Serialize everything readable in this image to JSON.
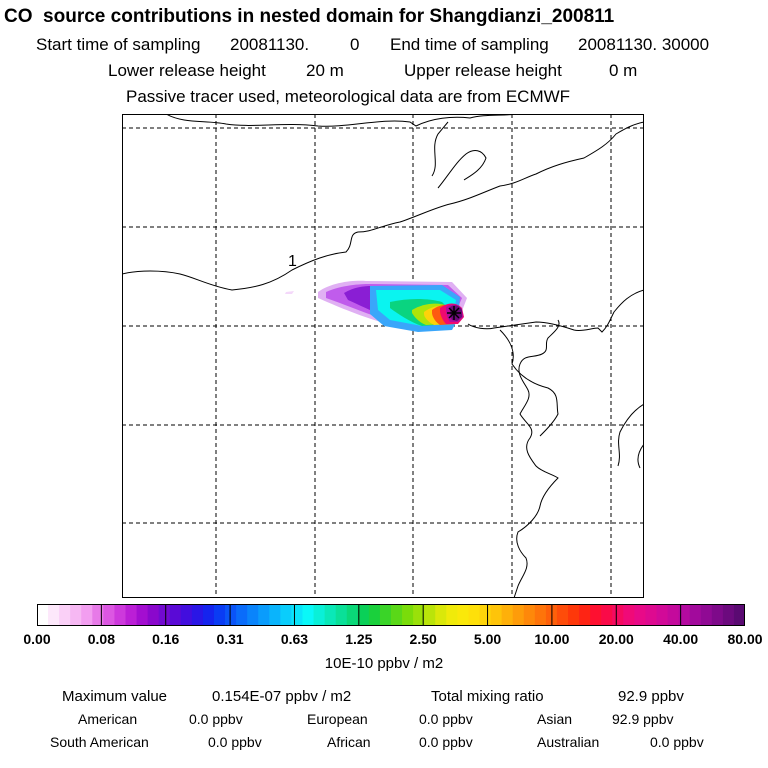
{
  "header": {
    "title": "CO  source contributions in nested domain for Shangdianzi_200811",
    "start_label": "Start time of sampling",
    "start_value": "20081130.",
    "start_hour": "0",
    "end_label": "End time of sampling",
    "end_value": "20081130. 30000",
    "lower_label": "Lower release height",
    "lower_value": "20 m",
    "upper_label": "Upper release height",
    "upper_value": "0 m",
    "note": "Passive tracer used, meteorological data are from ECMWF"
  },
  "map": {
    "contour_label": "1",
    "site_marker": "release-site-star"
  },
  "colorbar": {
    "labels": [
      "0.00",
      "0.08",
      "0.16",
      "0.31",
      "0.63",
      "1.25",
      "2.50",
      "5.00",
      "10.00",
      "20.00",
      "40.00",
      "80.00"
    ],
    "units": "10E-10 ppbv / m2",
    "colors": [
      "#ffffff",
      "#fde8fb",
      "#fad0f7",
      "#f6b8f3",
      "#f29ef0",
      "#e77ae8",
      "#dc57e2",
      "#cd39dc",
      "#bb1fd6",
      "#a30ed0",
      "#8a08cc",
      "#720ad0",
      "#5a0ad6",
      "#420ede",
      "#2a16e6",
      "#1524ee",
      "#0a3cf4",
      "#0a54f8",
      "#0a6cfa",
      "#0a84fb",
      "#0a9cfc",
      "#0ab4fc",
      "#0acdfc",
      "#0ae4fb",
      "#0af8f8",
      "#0af0d8",
      "#0ae8b8",
      "#0ae098",
      "#0ad878",
      "#0ad058",
      "#1ad03c",
      "#3ad428",
      "#5ad818",
      "#7adc0a",
      "#9ae00a",
      "#bae40a",
      "#dae80a",
      "#f0ea0a",
      "#fae80a",
      "#fee00a",
      "#fed40a",
      "#fec40a",
      "#feb00a",
      "#fe9c0a",
      "#fe880a",
      "#fe740a",
      "#fe600a",
      "#fe4c0a",
      "#fe380a",
      "#fe2414",
      "#fe1030",
      "#fa0a48",
      "#f50a60",
      "#f00a78",
      "#e80a88",
      "#de0a90",
      "#d20a98",
      "#c40a9c",
      "#b40aa0",
      "#a20a9c",
      "#900a94",
      "#7e0a8a",
      "#6c0a7e",
      "#5a0a72"
    ]
  },
  "footer": {
    "max_label": "Maximum value",
    "max_value": "0.154E-07 ppbv / m2",
    "total_label": "Total mixing ratio",
    "total_value": "92.9 ppbv",
    "regions": [
      {
        "name": "American",
        "value": "0.0 ppbv"
      },
      {
        "name": "European",
        "value": "0.0 ppbv"
      },
      {
        "name": "Asian",
        "value": "92.9 ppbv"
      },
      {
        "name": "South American",
        "value": "0.0 ppbv"
      },
      {
        "name": "African",
        "value": "0.0 ppbv"
      },
      {
        "name": "Australian",
        "value": "0.0 ppbv"
      }
    ]
  }
}
